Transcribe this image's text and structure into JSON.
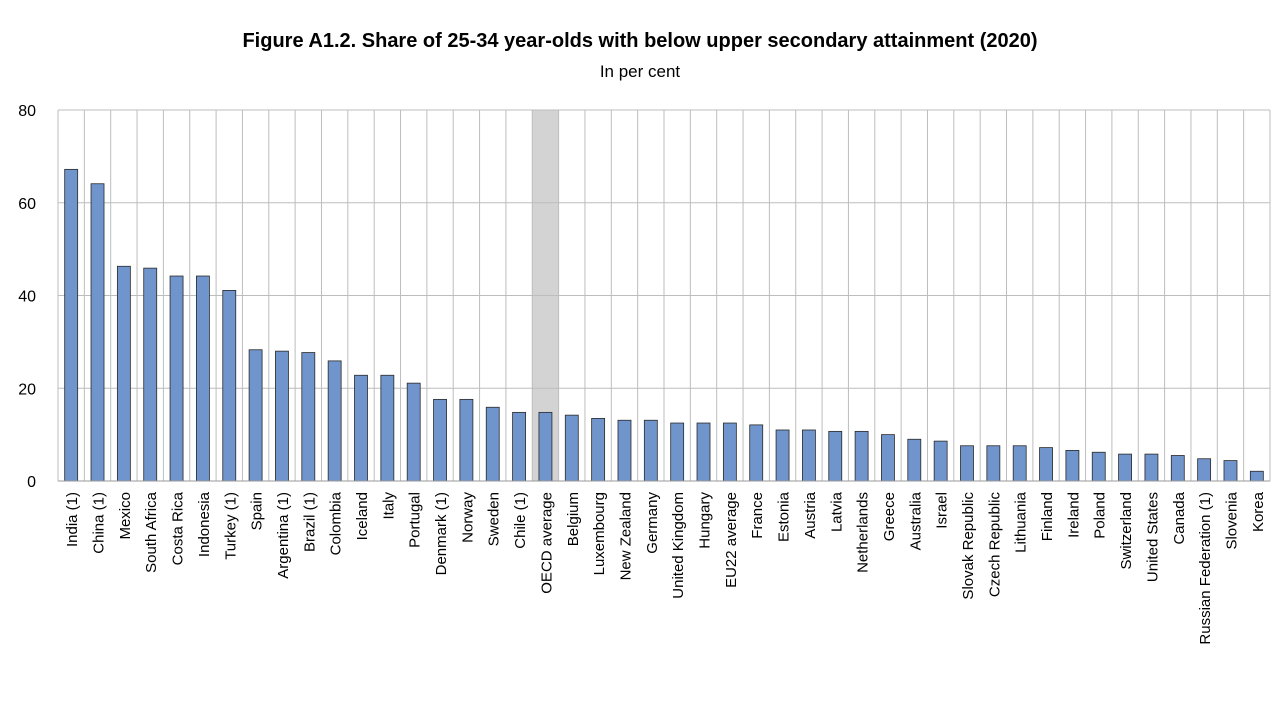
{
  "chart_data": {
    "type": "bar",
    "title": "Figure A1.2. Share of 25-34 year-olds with below upper secondary attainment (2020)",
    "subtitle": "In per cent",
    "xlabel": "",
    "ylabel": "",
    "ylim": [
      0,
      80
    ],
    "yticks": [
      "0",
      "20",
      "40",
      "60",
      "80"
    ],
    "grid": true,
    "legend": "none",
    "colors": {
      "bar": "#7094cc",
      "bar_stroke": "#2a2a2a",
      "highlight": "#d3d3d3",
      "grid": "#bdbdbd"
    },
    "highlight_category": "OECD average",
    "categories": [
      "India (1)",
      "China (1)",
      "Mexico",
      "South Africa",
      "Costa Rica",
      "Indonesia",
      "Turkey (1)",
      "Spain",
      "Argentina (1)",
      "Brazil (1)",
      "Colombia",
      "Iceland",
      "Italy",
      "Portugal",
      "Denmark (1)",
      "Norway",
      "Sweden",
      "Chile (1)",
      "OECD average",
      "Belgium",
      "Luxembourg",
      "New Zealand",
      "Germany",
      "United Kingdom",
      "Hungary",
      "EU22 average",
      "France",
      "Estonia",
      "Austria",
      "Latvia",
      "Netherlands",
      "Greece",
      "Australia",
      "Israel",
      "Slovak Republic",
      "Czech Republic",
      "Lithuania",
      "Finland",
      "Ireland",
      "Poland",
      "Switzerland",
      "United States",
      "Canada",
      "Russian Federation (1)",
      "Slovenia",
      "Korea"
    ],
    "values": [
      67.2,
      64.1,
      46.3,
      45.9,
      44.2,
      44.2,
      41.1,
      28.3,
      28.0,
      27.7,
      25.9,
      22.8,
      22.8,
      21.1,
      17.6,
      17.6,
      15.9,
      14.8,
      14.8,
      14.2,
      13.5,
      13.1,
      13.1,
      12.5,
      12.5,
      12.5,
      12.1,
      11.0,
      11.0,
      10.7,
      10.7,
      10.0,
      9.0,
      8.6,
      7.6,
      7.6,
      7.6,
      7.2,
      6.6,
      6.2,
      5.8,
      5.8,
      5.5,
      4.8,
      4.4,
      2.1
    ]
  }
}
